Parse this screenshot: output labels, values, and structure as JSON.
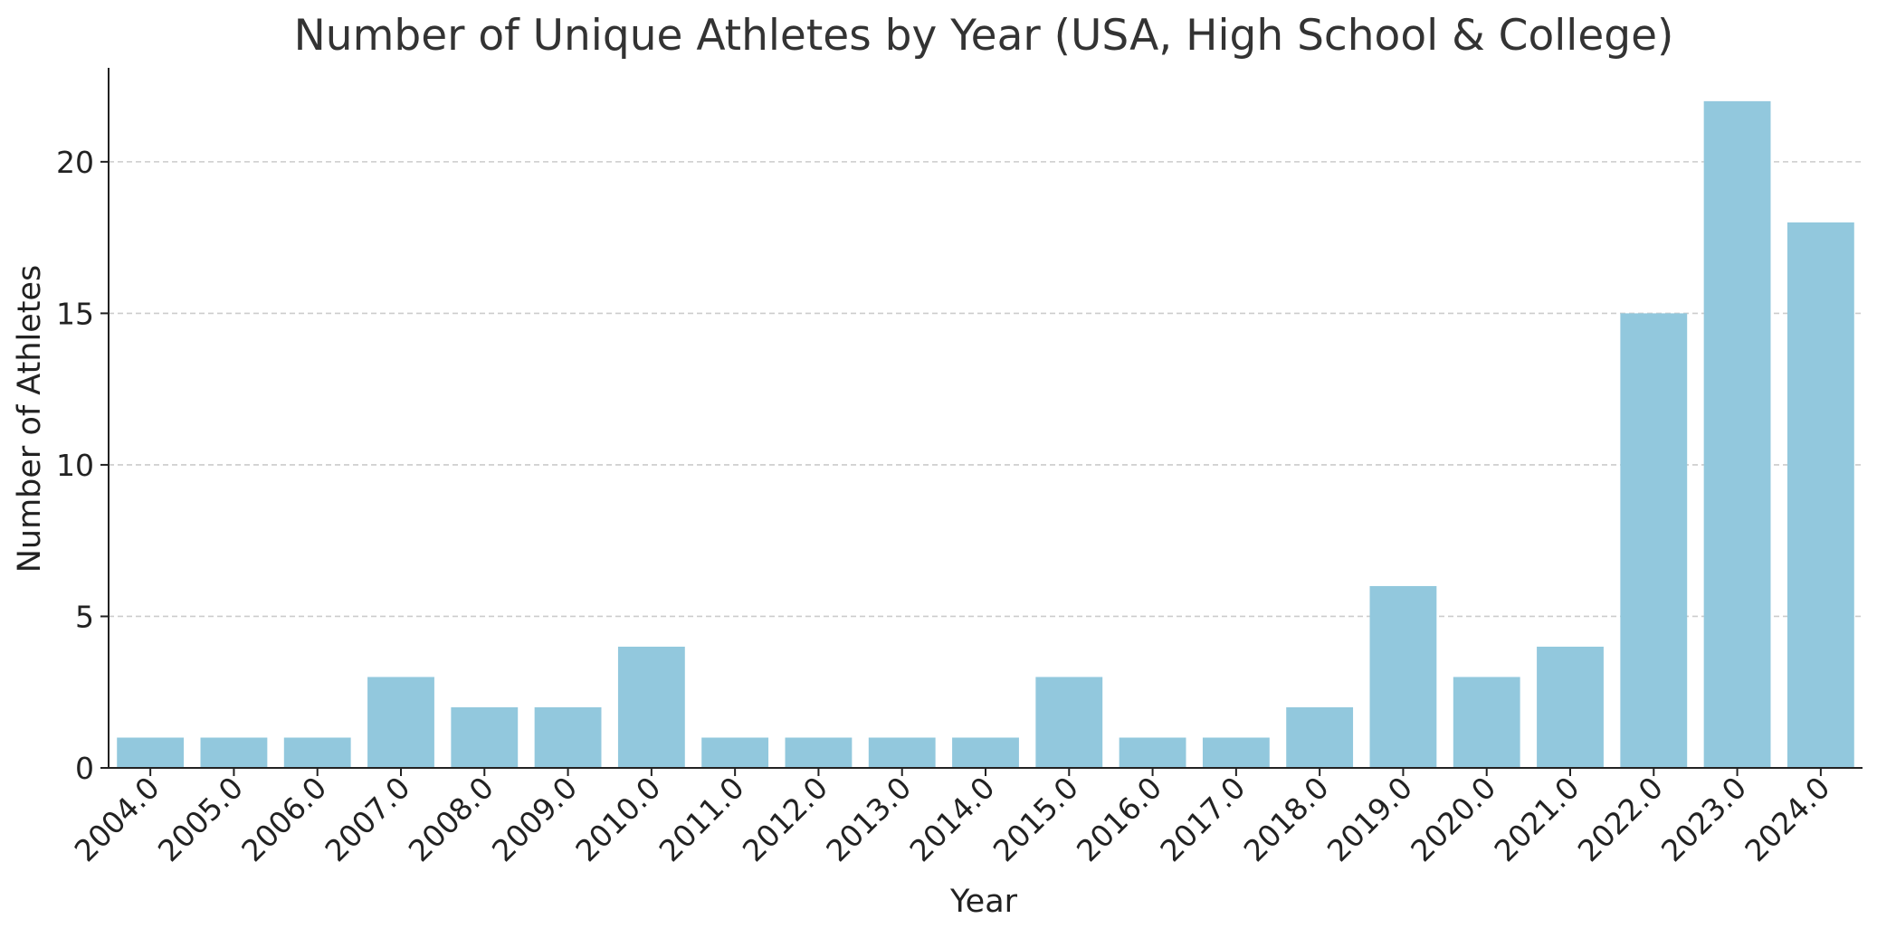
{
  "chart_data": {
    "type": "bar",
    "title": "Number of Unique Athletes by Year (USA, High School & College)",
    "xlabel": "Year",
    "ylabel": "Number of Athletes",
    "categories": [
      "2004.0",
      "2005.0",
      "2006.0",
      "2007.0",
      "2008.0",
      "2009.0",
      "2010.0",
      "2011.0",
      "2012.0",
      "2013.0",
      "2014.0",
      "2015.0",
      "2016.0",
      "2017.0",
      "2018.0",
      "2019.0",
      "2020.0",
      "2021.0",
      "2022.0",
      "2023.0",
      "2024.0"
    ],
    "values": [
      1,
      1,
      1,
      3,
      2,
      2,
      4,
      1,
      1,
      1,
      1,
      3,
      1,
      1,
      2,
      6,
      3,
      4,
      15,
      22,
      18
    ],
    "yticks": [
      0,
      5,
      10,
      15,
      20
    ],
    "ylim": [
      0,
      23.1
    ],
    "grid": "horizontal dashed",
    "bar_color": "#92c8dd",
    "grid_color": "#cccccc",
    "axis_color": "#222222"
  }
}
